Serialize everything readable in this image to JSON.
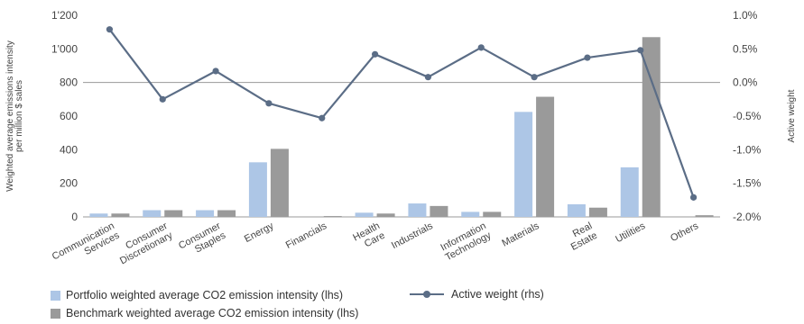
{
  "chart_data": {
    "type": "bar",
    "categories": [
      [
        "Communication",
        "Services"
      ],
      [
        "Consumer",
        "Discretionary"
      ],
      [
        "Consumer",
        "Staples"
      ],
      [
        "Energy"
      ],
      [
        "Financials"
      ],
      [
        "Health",
        "Care"
      ],
      [
        "Industrials"
      ],
      [
        "Information",
        "Technology"
      ],
      [
        "Materials"
      ],
      [
        "Real",
        "Estate"
      ],
      [
        "Utilities"
      ],
      [
        "Others"
      ]
    ],
    "series": [
      {
        "name": "Portfolio weighted average CO2 emission intensity (lhs)",
        "type": "bar",
        "axis": "left",
        "color": "#adc6e6",
        "values": [
          20,
          40,
          40,
          325,
          0,
          25,
          80,
          30,
          625,
          75,
          295,
          0
        ]
      },
      {
        "name": "Benchmark weighted average CO2 emission intensity (lhs)",
        "type": "bar",
        "axis": "left",
        "color": "#9a9a9a",
        "values": [
          20,
          40,
          40,
          405,
          5,
          20,
          65,
          30,
          715,
          55,
          1070,
          10
        ]
      },
      {
        "name": "Active weight (rhs)",
        "type": "line",
        "axis": "right",
        "color": "#5b6d86",
        "values": [
          0.79,
          -0.25,
          0.17,
          -0.31,
          -0.53,
          0.42,
          0.08,
          0.52,
          0.08,
          0.37,
          0.48,
          -1.71
        ]
      }
    ],
    "y_left": {
      "label_lines": [
        "Weighted average emissions intensity",
        "per million $ sales"
      ],
      "ylim": [
        0,
        1200
      ],
      "ticks": [
        0,
        200,
        400,
        600,
        800,
        1000,
        1200
      ],
      "tick_labels": [
        "0",
        "200",
        "400",
        "600",
        "800",
        "1'000",
        "1'200"
      ]
    },
    "y_right": {
      "label": "Active weight",
      "ylim": [
        -2.0,
        1.0
      ],
      "ticks": [
        1.0,
        0.5,
        0.0,
        -0.5,
        -1.0,
        -1.5,
        -2.0
      ],
      "tick_labels": [
        "1.0%",
        "0.5%",
        "0.0%",
        "-0.5%",
        "-1.0%",
        "-1.5%",
        "-2.0%"
      ]
    },
    "grid": false,
    "reference_line_at_right_zero": true,
    "legend_placement": "bottom"
  }
}
